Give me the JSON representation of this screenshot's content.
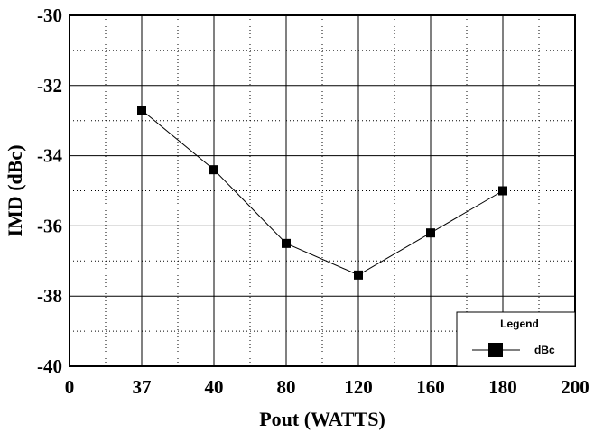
{
  "chart_data": {
    "type": "line",
    "categories": [
      "0",
      "37",
      "40",
      "80",
      "120",
      "160",
      "180",
      "200"
    ],
    "series": [
      {
        "name": "dBc",
        "points": [
          {
            "x": "37",
            "y": -32.7
          },
          {
            "x": "40",
            "y": -34.4
          },
          {
            "x": "80",
            "y": -36.5
          },
          {
            "x": "120",
            "y": -37.4
          },
          {
            "x": "160",
            "y": -36.2
          },
          {
            "x": "180",
            "y": -35.0
          }
        ]
      }
    ],
    "xlabel": "Pout (WATTS)",
    "ylabel": "IMD (dBc)",
    "ylim": [
      -40,
      -30
    ],
    "yticks": [
      -30,
      -32,
      -34,
      -36,
      -38,
      -40
    ],
    "grid": true,
    "legend": {
      "title": "Legend",
      "position": "bottom-right",
      "entries": [
        "dBc"
      ]
    },
    "colors": {
      "line": "#000000",
      "marker": "#000000",
      "grid": "#000000"
    }
  }
}
